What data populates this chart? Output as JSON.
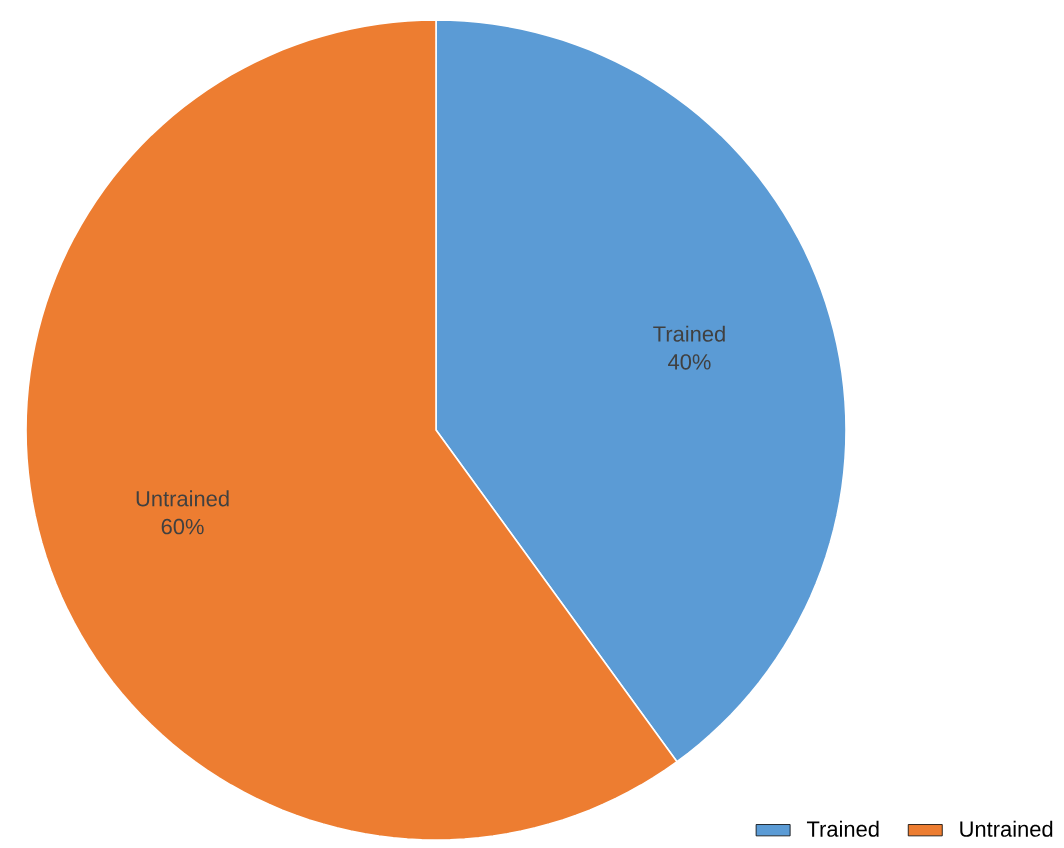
{
  "chart_data": {
    "type": "pie",
    "categories": [
      "Trained",
      "Untrained"
    ],
    "values": [
      40,
      60
    ],
    "value_labels": [
      "40%",
      "60%"
    ],
    "colors": [
      "#5b9bd5",
      "#ed7d31"
    ],
    "legend": "bottom right"
  }
}
